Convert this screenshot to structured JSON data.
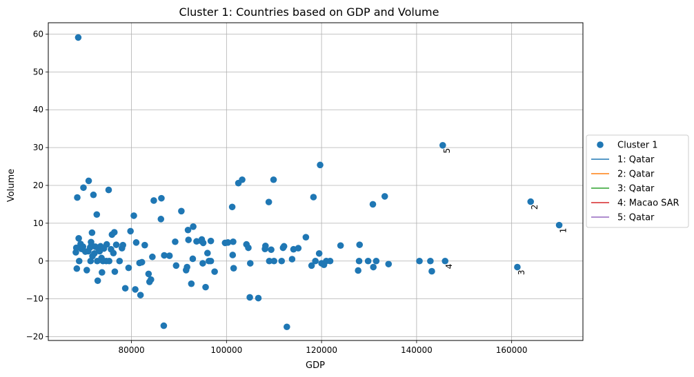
{
  "chart_data": {
    "type": "scatter",
    "title": "Cluster 1: Countries based on GDP and Volume",
    "xlabel": "GDP",
    "ylabel": "Volume",
    "xlim": [
      62500,
      175000
    ],
    "ylim": [
      -21,
      63
    ],
    "xticks": [
      80000,
      100000,
      120000,
      140000,
      160000
    ],
    "yticks": [
      -20,
      -10,
      0,
      10,
      20,
      30,
      40,
      50,
      60
    ],
    "grid": true,
    "legend_position": "center-right, outside plot",
    "colors": {
      "cluster": "#1f77b4",
      "series": [
        "#1f77b4",
        "#ff7f0e",
        "#2ca02c",
        "#d62728",
        "#9467bd"
      ]
    },
    "legend": [
      {
        "label": "Cluster 1",
        "kind": "marker"
      },
      {
        "label": "1: Qatar",
        "kind": "line"
      },
      {
        "label": "2: Qatar",
        "kind": "line"
      },
      {
        "label": "3: Qatar",
        "kind": "line"
      },
      {
        "label": "4: Macao SAR",
        "kind": "line"
      },
      {
        "label": "5: Qatar",
        "kind": "line"
      }
    ],
    "annotations": [
      {
        "text": "1",
        "x": 170000,
        "y": 9.5
      },
      {
        "text": "2",
        "x": 164000,
        "y": 15.7
      },
      {
        "text": "3",
        "x": 161200,
        "y": -1.6
      },
      {
        "text": "4",
        "x": 146000,
        "y": 0
      },
      {
        "text": "5",
        "x": 145500,
        "y": 30.6
      }
    ],
    "series": [
      {
        "name": "Cluster 1",
        "points": [
          [
            68800,
            59.1
          ],
          [
            68300,
            2.3
          ],
          [
            68400,
            3.5
          ],
          [
            68600,
            16.8
          ],
          [
            68500,
            -2.0
          ],
          [
            68900,
            6.0
          ],
          [
            69000,
            0.0
          ],
          [
            69300,
            4.5
          ],
          [
            69500,
            3.2
          ],
          [
            69800,
            3.8
          ],
          [
            69900,
            19.4
          ],
          [
            70300,
            2.5
          ],
          [
            70600,
            -2.4
          ],
          [
            70900,
            2.6
          ],
          [
            71000,
            21.2
          ],
          [
            71300,
            3.6
          ],
          [
            71400,
            0.0
          ],
          [
            71500,
            5.0
          ],
          [
            71600,
            4.2
          ],
          [
            71700,
            7.5
          ],
          [
            71800,
            1.3
          ],
          [
            72000,
            17.5
          ],
          [
            72200,
            2.0
          ],
          [
            72400,
            3.8
          ],
          [
            72700,
            12.3
          ],
          [
            72800,
            0.0
          ],
          [
            72900,
            -5.2
          ],
          [
            73100,
            3.2
          ],
          [
            73300,
            2.6
          ],
          [
            73500,
            3.9
          ],
          [
            73700,
            0.8
          ],
          [
            73800,
            -3.0
          ],
          [
            74000,
            0.0
          ],
          [
            74200,
            3.3
          ],
          [
            74700,
            0.0
          ],
          [
            74800,
            4.4
          ],
          [
            75200,
            18.8
          ],
          [
            75300,
            0.0
          ],
          [
            75700,
            3.1
          ],
          [
            75900,
            7.0
          ],
          [
            76200,
            2.1
          ],
          [
            76400,
            7.6
          ],
          [
            76500,
            -2.8
          ],
          [
            76800,
            4.3
          ],
          [
            77500,
            0.0
          ],
          [
            78000,
            3.4
          ],
          [
            78200,
            4.2
          ],
          [
            78700,
            -7.2
          ],
          [
            79400,
            -1.8
          ],
          [
            79800,
            7.9
          ],
          [
            80500,
            12.0
          ],
          [
            80800,
            -7.5
          ],
          [
            81000,
            4.9
          ],
          [
            81700,
            -0.5
          ],
          [
            81900,
            -9.0
          ],
          [
            82200,
            -0.3
          ],
          [
            82800,
            4.2
          ],
          [
            83600,
            -3.4
          ],
          [
            83800,
            -5.5
          ],
          [
            84100,
            -4.9
          ],
          [
            84400,
            1.1
          ],
          [
            84700,
            16.0
          ],
          [
            86200,
            11.1
          ],
          [
            86300,
            16.6
          ],
          [
            86800,
            -17.1
          ],
          [
            86900,
            1.5
          ],
          [
            88000,
            1.4
          ],
          [
            89200,
            5.1
          ],
          [
            89400,
            -1.2
          ],
          [
            90500,
            13.2
          ],
          [
            91500,
            -2.4
          ],
          [
            91700,
            -1.6
          ],
          [
            91900,
            8.2
          ],
          [
            92000,
            5.6
          ],
          [
            92600,
            -6.0
          ],
          [
            92900,
            0.6
          ],
          [
            93000,
            9.1
          ],
          [
            93700,
            5.2
          ],
          [
            94700,
            5.3
          ],
          [
            94800,
            5.7
          ],
          [
            95000,
            -0.6
          ],
          [
            95100,
            4.8
          ],
          [
            95600,
            -6.9
          ],
          [
            96000,
            2.1
          ],
          [
            96300,
            0.0
          ],
          [
            96700,
            0.0
          ],
          [
            96700,
            5.3
          ],
          [
            97500,
            -2.8
          ],
          [
            99700,
            4.8
          ],
          [
            100300,
            4.9
          ],
          [
            101200,
            14.3
          ],
          [
            101300,
            1.6
          ],
          [
            101400,
            5.1
          ],
          [
            101500,
            -1.9
          ],
          [
            102500,
            20.6
          ],
          [
            103300,
            21.5
          ],
          [
            104200,
            4.4
          ],
          [
            104600,
            3.5
          ],
          [
            104900,
            -9.6
          ],
          [
            105000,
            -0.6
          ],
          [
            106700,
            -9.8
          ],
          [
            108100,
            3.2
          ],
          [
            108200,
            4.0
          ],
          [
            108900,
            15.6
          ],
          [
            109000,
            0.0
          ],
          [
            109400,
            3.0
          ],
          [
            109900,
            21.5
          ],
          [
            110000,
            0.0
          ],
          [
            111600,
            0.0
          ],
          [
            111900,
            3.5
          ],
          [
            112100,
            3.9
          ],
          [
            112700,
            -17.4
          ],
          [
            113800,
            0.5
          ],
          [
            114100,
            3.1
          ],
          [
            115100,
            3.4
          ],
          [
            116700,
            6.3
          ],
          [
            117900,
            -1.2
          ],
          [
            118300,
            16.9
          ],
          [
            118700,
            0.0
          ],
          [
            119500,
            2.0
          ],
          [
            119700,
            25.4
          ],
          [
            120000,
            -0.6
          ],
          [
            120500,
            -1.0
          ],
          [
            121000,
            0.0
          ],
          [
            121800,
            0.0
          ],
          [
            124000,
            4.1
          ],
          [
            127700,
            -2.5
          ],
          [
            127900,
            0.0
          ],
          [
            128000,
            4.3
          ],
          [
            129800,
            0.0
          ],
          [
            130800,
            15.0
          ],
          [
            130900,
            -1.6
          ],
          [
            131500,
            0.0
          ],
          [
            133300,
            17.1
          ],
          [
            134100,
            -0.8
          ],
          [
            140600,
            0.0
          ],
          [
            142900,
            0.0
          ],
          [
            143200,
            -2.7
          ],
          [
            146000,
            0.0
          ],
          [
            145500,
            30.6
          ],
          [
            161200,
            -1.6
          ],
          [
            164000,
            15.7
          ],
          [
            170000,
            9.5
          ]
        ]
      }
    ]
  }
}
